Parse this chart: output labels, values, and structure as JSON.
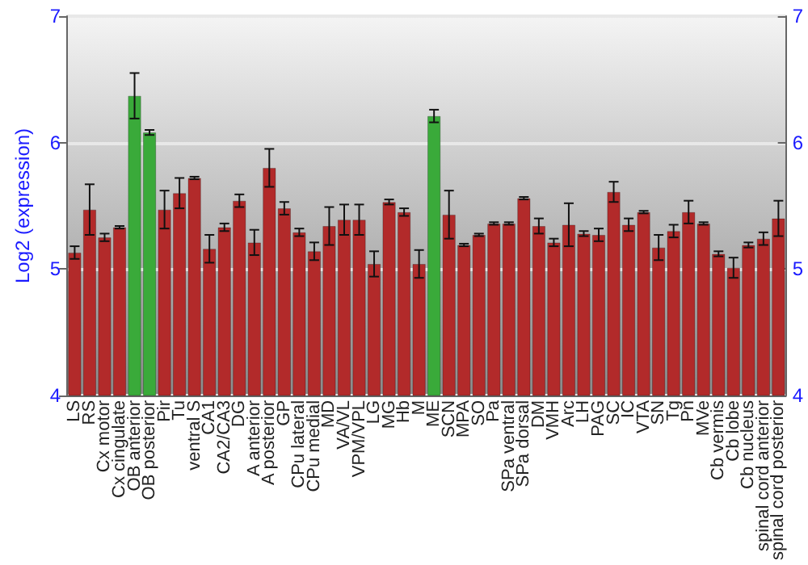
{
  "chart_data": {
    "type": "bar",
    "ylabel": "Log2 (expression)",
    "categories": [
      "LS",
      "RS",
      "Cx motor",
      "Cx cingulate",
      "OB anterior",
      "OB posterior",
      "Pir",
      "Tu",
      "ventral S",
      "CA1",
      "CA2/CA3",
      "DG",
      "A anterior",
      "A posterior",
      "GP",
      "CPu lateral",
      "CPu medial",
      "MD",
      "VA/VL",
      "VPM/VPL",
      "LG",
      "MG",
      "Hb",
      "M",
      "ME",
      "SCN",
      "MPA",
      "SO",
      "Pa",
      "SPa ventral",
      "SPa dorsal",
      "DM",
      "VMH",
      "Arc",
      "LH",
      "PAG",
      "SC",
      "IC",
      "VTA",
      "SN",
      "Tg",
      "Pn",
      "MVe",
      "Cb vermis",
      "Cb lobe",
      "Cb nucleus",
      "spinal cord anterior",
      "spinal cord posterior"
    ],
    "values": [
      5.13,
      5.47,
      5.25,
      5.33,
      6.37,
      6.08,
      5.47,
      5.6,
      5.72,
      5.16,
      5.33,
      5.54,
      5.21,
      5.8,
      5.48,
      5.29,
      5.14,
      5.34,
      5.39,
      5.39,
      5.04,
      5.53,
      5.45,
      5.04,
      6.21,
      5.43,
      5.19,
      5.27,
      5.36,
      5.36,
      5.56,
      5.34,
      5.21,
      5.35,
      5.28,
      5.27,
      5.61,
      5.35,
      5.45,
      5.17,
      5.3,
      5.45,
      5.36,
      5.12,
      5.01,
      5.19,
      5.24,
      5.4
    ],
    "errors": [
      0.05,
      0.2,
      0.03,
      0.01,
      0.18,
      0.02,
      0.15,
      0.12,
      0.01,
      0.11,
      0.03,
      0.05,
      0.1,
      0.15,
      0.05,
      0.03,
      0.07,
      0.15,
      0.12,
      0.12,
      0.1,
      0.02,
      0.03,
      0.11,
      0.05,
      0.19,
      0.01,
      0.01,
      0.01,
      0.01,
      0.01,
      0.06,
      0.03,
      0.17,
      0.02,
      0.05,
      0.08,
      0.05,
      0.01,
      0.1,
      0.05,
      0.09,
      0.01,
      0.02,
      0.08,
      0.02,
      0.05,
      0.14
    ],
    "colors": [
      "#b22a2a",
      "#b22a2a",
      "#b22a2a",
      "#b22a2a",
      "#3aaa3a",
      "#3aaa3a",
      "#b22a2a",
      "#b22a2a",
      "#b22a2a",
      "#b22a2a",
      "#b22a2a",
      "#b22a2a",
      "#b22a2a",
      "#b22a2a",
      "#b22a2a",
      "#b22a2a",
      "#b22a2a",
      "#b22a2a",
      "#b22a2a",
      "#b22a2a",
      "#b22a2a",
      "#b22a2a",
      "#b22a2a",
      "#b22a2a",
      "#3aaa3a",
      "#b22a2a",
      "#b22a2a",
      "#b22a2a",
      "#b22a2a",
      "#b22a2a",
      "#b22a2a",
      "#b22a2a",
      "#b22a2a",
      "#b22a2a",
      "#b22a2a",
      "#b22a2a",
      "#b22a2a",
      "#b22a2a",
      "#b22a2a",
      "#b22a2a",
      "#b22a2a",
      "#b22a2a",
      "#b22a2a",
      "#b22a2a",
      "#b22a2a",
      "#b22a2a",
      "#b22a2a",
      "#b22a2a"
    ],
    "ylim": [
      4,
      7
    ],
    "yticks": [
      4,
      5,
      6,
      7
    ],
    "y2lim": [
      4,
      7
    ],
    "y2ticks": [
      4,
      5,
      6,
      7
    ],
    "grid": "y"
  }
}
